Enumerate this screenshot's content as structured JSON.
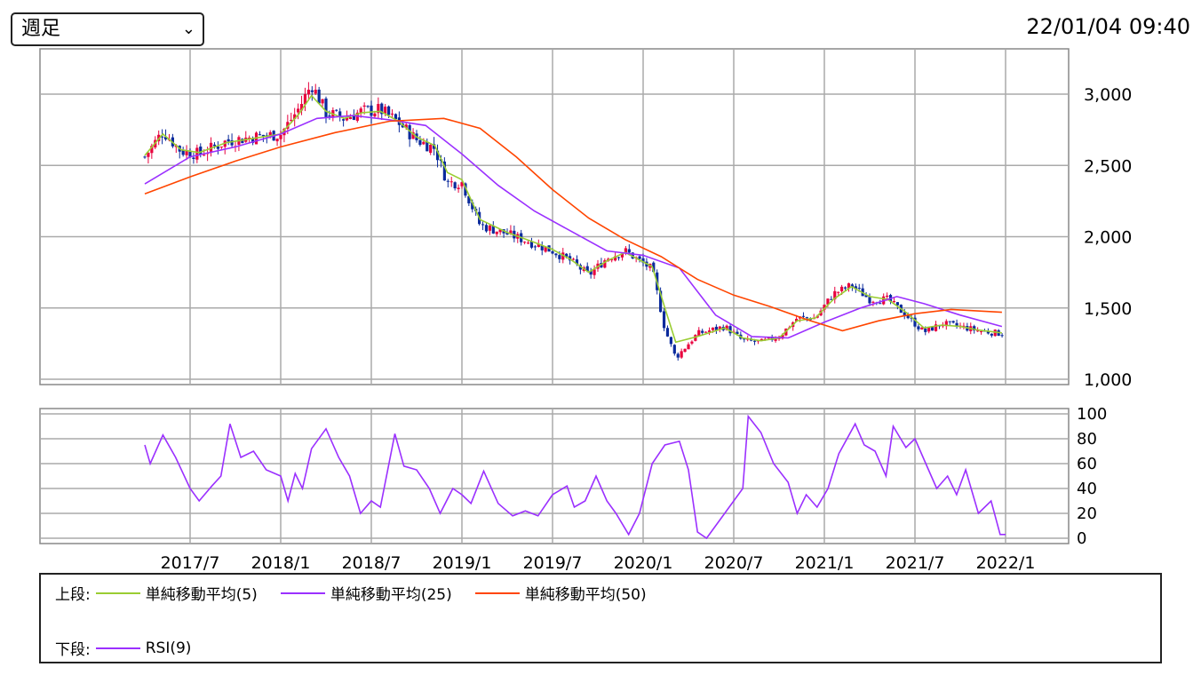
{
  "header": {
    "period_label": "週足",
    "timestamp": "22/01/04 09:40"
  },
  "colors": {
    "sma5": "#9acd32",
    "sma25": "#9b30ff",
    "sma50": "#ff4500",
    "rsi": "#9b30ff",
    "up": "#e8003d",
    "down": "#0a2a9c"
  },
  "legend": {
    "upper_label": "上段:",
    "lower_label": "下段:",
    "items": [
      {
        "name": "単純移動平均(5)",
        "color": "#9acd32"
      },
      {
        "name": "単純移動平均(25)",
        "color": "#9b30ff"
      },
      {
        "name": "単純移動平均(50)",
        "color": "#ff4500"
      }
    ],
    "rsi_name": "RSI(9)"
  },
  "chart_data": [
    {
      "type": "line",
      "panel": "price",
      "x_ticks": [
        "2017/7",
        "2018/1",
        "2018/7",
        "2019/1",
        "2019/7",
        "2020/1",
        "2020/7",
        "2021/1",
        "2021/7",
        "2022/1"
      ],
      "x_range": [
        2017.04,
        2022.0
      ],
      "ylim": [
        1000,
        3200
      ],
      "y_ticks": [
        1000,
        1500,
        2000,
        2500,
        3000
      ],
      "y_tick_labels": [
        "1,000",
        "1,500",
        "2,000",
        "2,500",
        "3,000"
      ],
      "grid": true,
      "close_path": [
        [
          2017.25,
          2560
        ],
        [
          2017.35,
          2740
        ],
        [
          2017.45,
          2600
        ],
        [
          2017.55,
          2580
        ],
        [
          2017.7,
          2670
        ],
        [
          2017.85,
          2700
        ],
        [
          2018.0,
          2720
        ],
        [
          2018.1,
          2900
        ],
        [
          2018.17,
          3070
        ],
        [
          2018.25,
          2870
        ],
        [
          2018.35,
          2830
        ],
        [
          2018.45,
          2880
        ],
        [
          2018.55,
          2890
        ],
        [
          2018.65,
          2800
        ],
        [
          2018.75,
          2680
        ],
        [
          2018.85,
          2620
        ],
        [
          2018.92,
          2380
        ],
        [
          2019.0,
          2380
        ],
        [
          2019.1,
          2080
        ],
        [
          2019.25,
          2020
        ],
        [
          2019.4,
          1950
        ],
        [
          2019.5,
          1900
        ],
        [
          2019.6,
          1830
        ],
        [
          2019.7,
          1730
        ],
        [
          2019.8,
          1850
        ],
        [
          2019.9,
          1900
        ],
        [
          2020.05,
          1770
        ],
        [
          2020.12,
          1350
        ],
        [
          2020.18,
          1150
        ],
        [
          2020.3,
          1320
        ],
        [
          2020.45,
          1370
        ],
        [
          2020.55,
          1270
        ],
        [
          2020.65,
          1260
        ],
        [
          2020.75,
          1300
        ],
        [
          2020.85,
          1430
        ],
        [
          2020.95,
          1430
        ],
        [
          2021.05,
          1600
        ],
        [
          2021.15,
          1660
        ],
        [
          2021.25,
          1560
        ],
        [
          2021.35,
          1560
        ],
        [
          2021.45,
          1450
        ],
        [
          2021.55,
          1330
        ],
        [
          2021.65,
          1390
        ],
        [
          2021.75,
          1370
        ],
        [
          2021.85,
          1340
        ],
        [
          2021.98,
          1320
        ]
      ],
      "series": [
        {
          "name": "単純移動平均(5)",
          "points": [
            [
              2017.25,
              2570
            ],
            [
              2017.35,
              2720
            ],
            [
              2017.45,
              2610
            ],
            [
              2017.55,
              2590
            ],
            [
              2017.7,
              2660
            ],
            [
              2017.85,
              2690
            ],
            [
              2018.0,
              2720
            ],
            [
              2018.1,
              2860
            ],
            [
              2018.17,
              2990
            ],
            [
              2018.25,
              2880
            ],
            [
              2018.35,
              2830
            ],
            [
              2018.45,
              2870
            ],
            [
              2018.55,
              2880
            ],
            [
              2018.65,
              2810
            ],
            [
              2018.75,
              2700
            ],
            [
              2018.85,
              2640
            ],
            [
              2018.92,
              2450
            ],
            [
              2019.0,
              2400
            ],
            [
              2019.1,
              2120
            ],
            [
              2019.25,
              2030
            ],
            [
              2019.4,
              1960
            ],
            [
              2019.5,
              1910
            ],
            [
              2019.6,
              1840
            ],
            [
              2019.7,
              1750
            ],
            [
              2019.8,
              1830
            ],
            [
              2019.9,
              1890
            ],
            [
              2020.05,
              1790
            ],
            [
              2020.12,
              1500
            ],
            [
              2020.18,
              1260
            ],
            [
              2020.3,
              1300
            ],
            [
              2020.45,
              1360
            ],
            [
              2020.55,
              1290
            ],
            [
              2020.65,
              1270
            ],
            [
              2020.75,
              1290
            ],
            [
              2020.85,
              1410
            ],
            [
              2020.95,
              1430
            ],
            [
              2021.05,
              1560
            ],
            [
              2021.15,
              1650
            ],
            [
              2021.25,
              1580
            ],
            [
              2021.35,
              1560
            ],
            [
              2021.45,
              1470
            ],
            [
              2021.55,
              1360
            ],
            [
              2021.65,
              1380
            ],
            [
              2021.75,
              1370
            ],
            [
              2021.85,
              1345
            ],
            [
              2021.98,
              1325
            ]
          ]
        },
        {
          "name": "単純移動平均(25)",
          "points": [
            [
              2017.25,
              2370
            ],
            [
              2017.5,
              2560
            ],
            [
              2017.75,
              2630
            ],
            [
              2018.0,
              2720
            ],
            [
              2018.2,
              2830
            ],
            [
              2018.4,
              2850
            ],
            [
              2018.6,
              2820
            ],
            [
              2018.8,
              2780
            ],
            [
              2019.0,
              2580
            ],
            [
              2019.2,
              2360
            ],
            [
              2019.4,
              2180
            ],
            [
              2019.6,
              2040
            ],
            [
              2019.8,
              1900
            ],
            [
              2020.0,
              1870
            ],
            [
              2020.2,
              1780
            ],
            [
              2020.4,
              1450
            ],
            [
              2020.6,
              1300
            ],
            [
              2020.8,
              1290
            ],
            [
              2021.0,
              1400
            ],
            [
              2021.2,
              1500
            ],
            [
              2021.4,
              1580
            ],
            [
              2021.55,
              1530
            ],
            [
              2021.75,
              1450
            ],
            [
              2021.98,
              1370
            ]
          ]
        },
        {
          "name": "単純移動平均(50)",
          "points": [
            [
              2017.25,
              2300
            ],
            [
              2017.5,
              2420
            ],
            [
              2017.75,
              2530
            ],
            [
              2018.0,
              2630
            ],
            [
              2018.3,
              2730
            ],
            [
              2018.6,
              2810
            ],
            [
              2018.9,
              2830
            ],
            [
              2019.1,
              2760
            ],
            [
              2019.3,
              2560
            ],
            [
              2019.5,
              2330
            ],
            [
              2019.7,
              2130
            ],
            [
              2019.9,
              1980
            ],
            [
              2020.1,
              1860
            ],
            [
              2020.3,
              1700
            ],
            [
              2020.5,
              1590
            ],
            [
              2020.7,
              1510
            ],
            [
              2020.9,
              1420
            ],
            [
              2021.1,
              1340
            ],
            [
              2021.3,
              1410
            ],
            [
              2021.5,
              1460
            ],
            [
              2021.7,
              1490
            ],
            [
              2021.98,
              1470
            ]
          ]
        }
      ]
    },
    {
      "type": "line",
      "panel": "rsi",
      "x_range": [
        2017.04,
        2022.0
      ],
      "ylim": [
        0,
        100
      ],
      "y_ticks": [
        0,
        20,
        40,
        60,
        80,
        100
      ],
      "grid": true,
      "series": [
        {
          "name": "RSI(9)",
          "points": [
            [
              2017.25,
              75
            ],
            [
              2017.28,
              60
            ],
            [
              2017.35,
              83
            ],
            [
              2017.42,
              65
            ],
            [
              2017.5,
              40
            ],
            [
              2017.55,
              30
            ],
            [
              2017.62,
              42
            ],
            [
              2017.67,
              50
            ],
            [
              2017.72,
              92
            ],
            [
              2017.78,
              65
            ],
            [
              2017.85,
              70
            ],
            [
              2017.92,
              55
            ],
            [
              2018.0,
              50
            ],
            [
              2018.04,
              30
            ],
            [
              2018.08,
              52
            ],
            [
              2018.12,
              40
            ],
            [
              2018.17,
              72
            ],
            [
              2018.25,
              88
            ],
            [
              2018.32,
              65
            ],
            [
              2018.38,
              50
            ],
            [
              2018.44,
              20
            ],
            [
              2018.5,
              30
            ],
            [
              2018.55,
              25
            ],
            [
              2018.63,
              84
            ],
            [
              2018.68,
              58
            ],
            [
              2018.75,
              55
            ],
            [
              2018.82,
              40
            ],
            [
              2018.88,
              20
            ],
            [
              2018.95,
              40
            ],
            [
              2019.0,
              35
            ],
            [
              2019.05,
              28
            ],
            [
              2019.12,
              54
            ],
            [
              2019.2,
              28
            ],
            [
              2019.28,
              18
            ],
            [
              2019.35,
              22
            ],
            [
              2019.42,
              18
            ],
            [
              2019.5,
              35
            ],
            [
              2019.58,
              42
            ],
            [
              2019.62,
              25
            ],
            [
              2019.68,
              30
            ],
            [
              2019.74,
              50
            ],
            [
              2019.8,
              30
            ],
            [
              2019.85,
              20
            ],
            [
              2019.92,
              3
            ],
            [
              2019.98,
              20
            ],
            [
              2020.05,
              60
            ],
            [
              2020.12,
              75
            ],
            [
              2020.2,
              78
            ],
            [
              2020.25,
              55
            ],
            [
              2020.3,
              5
            ],
            [
              2020.35,
              0
            ],
            [
              2020.45,
              20
            ],
            [
              2020.55,
              40
            ],
            [
              2020.58,
              98
            ],
            [
              2020.65,
              85
            ],
            [
              2020.72,
              60
            ],
            [
              2020.8,
              45
            ],
            [
              2020.85,
              20
            ],
            [
              2020.9,
              35
            ],
            [
              2020.96,
              25
            ],
            [
              2021.02,
              40
            ],
            [
              2021.08,
              68
            ],
            [
              2021.17,
              92
            ],
            [
              2021.22,
              75
            ],
            [
              2021.28,
              70
            ],
            [
              2021.34,
              50
            ],
            [
              2021.38,
              90
            ],
            [
              2021.45,
              73
            ],
            [
              2021.5,
              80
            ],
            [
              2021.56,
              60
            ],
            [
              2021.62,
              40
            ],
            [
              2021.68,
              50
            ],
            [
              2021.73,
              35
            ],
            [
              2021.78,
              55
            ],
            [
              2021.85,
              20
            ],
            [
              2021.92,
              30
            ],
            [
              2021.97,
              3
            ],
            [
              2022.0,
              3
            ]
          ]
        }
      ]
    }
  ]
}
